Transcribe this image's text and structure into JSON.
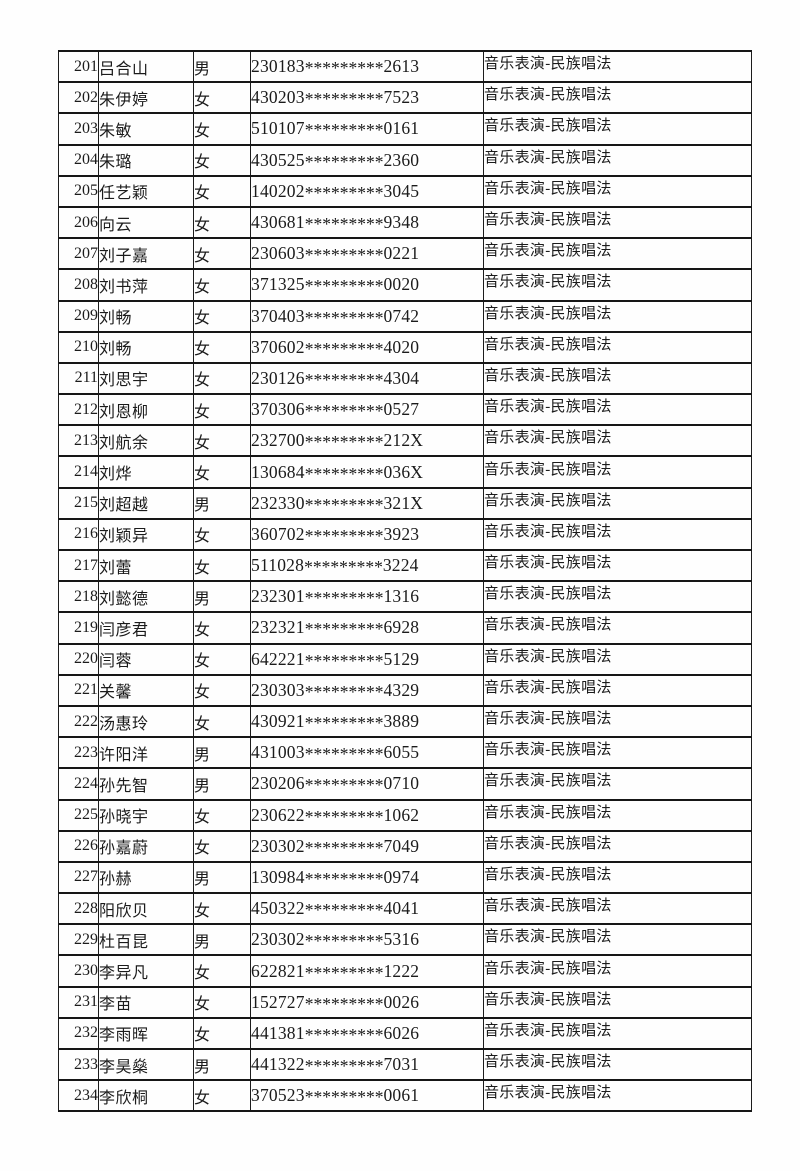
{
  "table": {
    "rows": [
      {
        "no": "201",
        "name": "吕合山",
        "gender": "男",
        "id": "230183*********2613",
        "major": "音乐表演-民族唱法"
      },
      {
        "no": "202",
        "name": "朱伊婷",
        "gender": "女",
        "id": "430203*********7523",
        "major": "音乐表演-民族唱法"
      },
      {
        "no": "203",
        "name": "朱敏",
        "gender": "女",
        "id": "510107*********0161",
        "major": "音乐表演-民族唱法"
      },
      {
        "no": "204",
        "name": "朱璐",
        "gender": "女",
        "id": "430525*********2360",
        "major": "音乐表演-民族唱法"
      },
      {
        "no": "205",
        "name": "任艺颖",
        "gender": "女",
        "id": "140202*********3045",
        "major": "音乐表演-民族唱法"
      },
      {
        "no": "206",
        "name": "向云",
        "gender": "女",
        "id": "430681*********9348",
        "major": "音乐表演-民族唱法"
      },
      {
        "no": "207",
        "name": "刘子嘉",
        "gender": "女",
        "id": "230603*********0221",
        "major": "音乐表演-民族唱法"
      },
      {
        "no": "208",
        "name": "刘书萍",
        "gender": "女",
        "id": "371325*********0020",
        "major": "音乐表演-民族唱法"
      },
      {
        "no": "209",
        "name": "刘畅",
        "gender": "女",
        "id": "370403*********0742",
        "major": "音乐表演-民族唱法"
      },
      {
        "no": "210",
        "name": "刘畅",
        "gender": "女",
        "id": "370602*********4020",
        "major": "音乐表演-民族唱法"
      },
      {
        "no": "211",
        "name": "刘思宇",
        "gender": "女",
        "id": "230126*********4304",
        "major": "音乐表演-民族唱法"
      },
      {
        "no": "212",
        "name": "刘恩柳",
        "gender": "女",
        "id": "370306*********0527",
        "major": "音乐表演-民族唱法"
      },
      {
        "no": "213",
        "name": "刘航余",
        "gender": "女",
        "id": "232700*********212X",
        "major": "音乐表演-民族唱法"
      },
      {
        "no": "214",
        "name": "刘烨",
        "gender": "女",
        "id": "130684*********036X",
        "major": "音乐表演-民族唱法"
      },
      {
        "no": "215",
        "name": "刘超越",
        "gender": "男",
        "id": "232330*********321X",
        "major": "音乐表演-民族唱法"
      },
      {
        "no": "216",
        "name": "刘颖异",
        "gender": "女",
        "id": "360702*********3923",
        "major": "音乐表演-民族唱法"
      },
      {
        "no": "217",
        "name": "刘蕾",
        "gender": "女",
        "id": "511028*********3224",
        "major": "音乐表演-民族唱法"
      },
      {
        "no": "218",
        "name": "刘懿德",
        "gender": "男",
        "id": "232301*********1316",
        "major": "音乐表演-民族唱法"
      },
      {
        "no": "219",
        "name": "闫彦君",
        "gender": "女",
        "id": "232321*********6928",
        "major": "音乐表演-民族唱法"
      },
      {
        "no": "220",
        "name": "闫蓉",
        "gender": "女",
        "id": "642221*********5129",
        "major": "音乐表演-民族唱法"
      },
      {
        "no": "221",
        "name": "关馨",
        "gender": "女",
        "id": "230303*********4329",
        "major": "音乐表演-民族唱法"
      },
      {
        "no": "222",
        "name": "汤惠玲",
        "gender": "女",
        "id": "430921*********3889",
        "major": "音乐表演-民族唱法"
      },
      {
        "no": "223",
        "name": "许阳洋",
        "gender": "男",
        "id": "431003*********6055",
        "major": "音乐表演-民族唱法"
      },
      {
        "no": "224",
        "name": "孙先智",
        "gender": "男",
        "id": "230206*********0710",
        "major": "音乐表演-民族唱法"
      },
      {
        "no": "225",
        "name": "孙晓宇",
        "gender": "女",
        "id": "230622*********1062",
        "major": "音乐表演-民族唱法"
      },
      {
        "no": "226",
        "name": "孙嘉蔚",
        "gender": "女",
        "id": "230302*********7049",
        "major": "音乐表演-民族唱法"
      },
      {
        "no": "227",
        "name": "孙赫",
        "gender": "男",
        "id": "130984*********0974",
        "major": "音乐表演-民族唱法"
      },
      {
        "no": "228",
        "name": "阳欣贝",
        "gender": "女",
        "id": "450322*********4041",
        "major": "音乐表演-民族唱法"
      },
      {
        "no": "229",
        "name": "杜百昆",
        "gender": "男",
        "id": "230302*********5316",
        "major": "音乐表演-民族唱法"
      },
      {
        "no": "230",
        "name": "李异凡",
        "gender": "女",
        "id": "622821*********1222",
        "major": "音乐表演-民族唱法"
      },
      {
        "no": "231",
        "name": "李苗",
        "gender": "女",
        "id": "152727*********0026",
        "major": "音乐表演-民族唱法"
      },
      {
        "no": "232",
        "name": "李雨晖",
        "gender": "女",
        "id": "441381*********6026",
        "major": "音乐表演-民族唱法"
      },
      {
        "no": "233",
        "name": "李昊燊",
        "gender": "男",
        "id": "441322*********7031",
        "major": "音乐表演-民族唱法"
      },
      {
        "no": "234",
        "name": "李欣桐",
        "gender": "女",
        "id": "370523*********0061",
        "major": "音乐表演-民族唱法"
      }
    ]
  }
}
